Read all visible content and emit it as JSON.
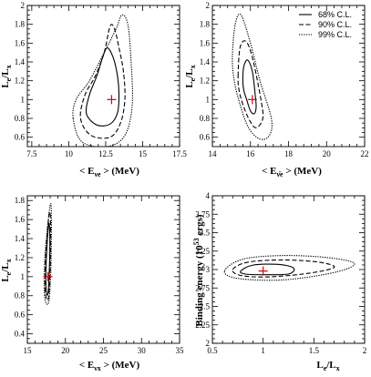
{
  "chart_data": [
    {
      "id": "p1",
      "type": "contour",
      "xlabel": {
        "main": "< E",
        "sub": "νe",
        "tail": " > (MeV)"
      },
      "ylabel": {
        "main": "L",
        "sub1": "e",
        "mid": "/L",
        "sub2": "x"
      },
      "xlim": [
        7.2,
        17.5
      ],
      "ylim": [
        0.5,
        2.0
      ],
      "xticks": [
        7.5,
        10,
        12.5,
        15,
        17.5
      ],
      "xtick_labels": [
        "7.5",
        "10",
        "12.5",
        "15",
        "17.5"
      ],
      "yticks": [
        0.6,
        0.8,
        1.0,
        1.2,
        1.4,
        1.6,
        1.8,
        2.0
      ],
      "ytick_labels": [
        "0.6",
        "0.8",
        "1",
        "1.2",
        "1.4",
        "1.6",
        "1.8",
        "2"
      ],
      "best_fit": [
        12.9,
        1.0
      ],
      "contours": [
        {
          "level": "68% C.L.",
          "style": "solid",
          "points": [
            [
              11.2,
              0.85
            ],
            [
              11.9,
              0.73
            ],
            [
              12.8,
              0.74
            ],
            [
              13.3,
              0.86
            ],
            [
              13.4,
              1.05
            ],
            [
              13.3,
              1.25
            ],
            [
              13.0,
              1.45
            ],
            [
              12.6,
              1.55
            ],
            [
              12.3,
              1.45
            ],
            [
              11.9,
              1.25
            ],
            [
              11.4,
              1.05
            ]
          ]
        },
        {
          "level": "90% C.L.",
          "style": "dashed",
          "points": [
            [
              10.8,
              0.8
            ],
            [
              11.5,
              0.62
            ],
            [
              12.8,
              0.6
            ],
            [
              13.5,
              0.75
            ],
            [
              13.8,
              1.0
            ],
            [
              13.7,
              1.3
            ],
            [
              13.4,
              1.55
            ],
            [
              13.1,
              1.75
            ],
            [
              12.8,
              1.78
            ],
            [
              12.4,
              1.5
            ],
            [
              11.8,
              1.25
            ],
            [
              11.1,
              1.05
            ]
          ]
        },
        {
          "level": "99% C.L.",
          "style": "dotted",
          "points": [
            [
              10.3,
              0.8
            ],
            [
              10.9,
              0.55
            ],
            [
              12.6,
              0.5
            ],
            [
              13.8,
              0.62
            ],
            [
              14.3,
              0.95
            ],
            [
              14.2,
              1.45
            ],
            [
              14.0,
              1.8
            ],
            [
              13.6,
              1.9
            ],
            [
              13.2,
              1.75
            ],
            [
              12.4,
              1.5
            ],
            [
              11.4,
              1.2
            ],
            [
              10.5,
              1.0
            ]
          ]
        }
      ]
    },
    {
      "id": "p2",
      "type": "contour",
      "xlabel": {
        "main": "< E",
        "sub": "ν̄e",
        "tail": " > (MeV)"
      },
      "ylabel": {
        "main": "L",
        "sub1": "e",
        "mid": "/L",
        "sub2": "x"
      },
      "xlim": [
        14,
        22
      ],
      "ylim": [
        0.5,
        2.0
      ],
      "xticks": [
        14,
        16,
        18,
        20,
        22
      ],
      "xtick_labels": [
        "14",
        "16",
        "18",
        "20",
        "22"
      ],
      "yticks": [
        0.6,
        0.8,
        1.0,
        1.2,
        1.4,
        1.6,
        1.8,
        2.0
      ],
      "ytick_labels": [
        "0.6",
        "0.8",
        "1",
        "1.2",
        "1.4",
        "1.6",
        "1.8",
        "2"
      ],
      "best_fit": [
        16.1,
        1.0
      ],
      "legend": {
        "position": "top-right",
        "entries": [
          {
            "label": "68% C.L.",
            "style": "solid"
          },
          {
            "label": "90% C.L.",
            "style": "dashed"
          },
          {
            "label": "99% C.L.",
            "style": "dotted"
          }
        ]
      },
      "contours": [
        {
          "level": "68% C.L.",
          "style": "solid",
          "points": [
            [
              15.6,
              1.2
            ],
            [
              15.65,
              1.35
            ],
            [
              15.85,
              1.42
            ],
            [
              16.1,
              1.3
            ],
            [
              16.25,
              1.05
            ],
            [
              16.3,
              0.92
            ],
            [
              16.2,
              0.85
            ],
            [
              16.0,
              0.88
            ],
            [
              15.8,
              1.0
            ],
            [
              15.65,
              1.1
            ]
          ]
        },
        {
          "level": "90% C.L.",
          "style": "dashed",
          "points": [
            [
              15.35,
              1.25
            ],
            [
              15.45,
              1.55
            ],
            [
              15.75,
              1.62
            ],
            [
              16.1,
              1.45
            ],
            [
              16.55,
              1.0
            ],
            [
              16.65,
              0.8
            ],
            [
              16.3,
              0.7
            ],
            [
              15.95,
              0.78
            ],
            [
              15.6,
              0.95
            ],
            [
              15.4,
              1.1
            ]
          ]
        },
        {
          "level": "99% C.L.",
          "style": "dotted",
          "points": [
            [
              15.05,
              1.45
            ],
            [
              15.2,
              1.8
            ],
            [
              15.5,
              1.9
            ],
            [
              16.0,
              1.6
            ],
            [
              16.5,
              1.2
            ],
            [
              17.1,
              0.8
            ],
            [
              17.0,
              0.62
            ],
            [
              16.5,
              0.58
            ],
            [
              15.9,
              0.7
            ],
            [
              15.45,
              0.95
            ],
            [
              15.15,
              1.2
            ]
          ]
        }
      ]
    },
    {
      "id": "p3",
      "type": "contour",
      "xlabel": {
        "main": "< E",
        "sub": "νx",
        "tail": " > (MeV)"
      },
      "ylabel": {
        "main": "L",
        "sub1": "e",
        "mid": "/L",
        "sub2": "x"
      },
      "xlim": [
        15,
        35
      ],
      "ylim": [
        0.3,
        1.85
      ],
      "xticks": [
        15,
        20,
        25,
        30,
        35
      ],
      "xtick_labels": [
        "15",
        "20",
        "25",
        "30",
        "35"
      ],
      "yticks": [
        0.4,
        0.6,
        0.8,
        1.0,
        1.2,
        1.4,
        1.6,
        1.8
      ],
      "ytick_labels": [
        "0.4",
        "0.6",
        "0.8",
        "1",
        "1.2",
        "1.4",
        "1.6",
        "1.8"
      ],
      "best_fit": [
        17.7,
        1.0
      ],
      "contours": [
        {
          "level": "68% C.L.",
          "style": "solid",
          "points": [
            [
              17.45,
              0.88
            ],
            [
              17.5,
              1.2
            ],
            [
              17.8,
              1.55
            ],
            [
              17.95,
              1.45
            ],
            [
              17.9,
              1.1
            ],
            [
              17.7,
              0.82
            ]
          ]
        },
        {
          "level": "90% C.L.",
          "style": "dashed",
          "points": [
            [
              17.35,
              0.84
            ],
            [
              17.4,
              1.2
            ],
            [
              17.85,
              1.65
            ],
            [
              18.05,
              1.58
            ],
            [
              18.0,
              1.1
            ],
            [
              17.75,
              0.77
            ]
          ]
        },
        {
          "level": "99% C.L.",
          "style": "dotted",
          "points": [
            [
              17.25,
              0.8
            ],
            [
              17.3,
              1.2
            ],
            [
              17.9,
              1.7
            ],
            [
              18.15,
              1.7
            ],
            [
              18.1,
              1.1
            ],
            [
              17.8,
              0.73
            ]
          ]
        }
      ]
    },
    {
      "id": "p4",
      "type": "contour",
      "xlabel": {
        "main": "L",
        "sub1": "e",
        "mid": "/L",
        "sub2": "x"
      },
      "ylabel": {
        "pre": "Binding energy (10",
        "sup": "53",
        "post": " ergs)"
      },
      "xlim": [
        0.5,
        2.0
      ],
      "ylim": [
        2.0,
        4.0
      ],
      "xticks": [
        0.5,
        1.0,
        1.5,
        2.0
      ],
      "xtick_labels": [
        "0.5",
        "1",
        "1.5",
        "2"
      ],
      "yticks": [
        2.0,
        2.25,
        2.5,
        2.75,
        3.0,
        3.25,
        3.5,
        3.75,
        4.0
      ],
      "ytick_labels": [
        "2",
        "2.25",
        "2.5",
        "2.75",
        "3",
        "3.25",
        "3.5",
        "3.75",
        "4"
      ],
      "best_fit": [
        1.0,
        2.98
      ],
      "contours": [
        {
          "level": "68% C.L.",
          "style": "solid",
          "points": [
            [
              0.78,
              2.98
            ],
            [
              0.9,
              3.06
            ],
            [
              1.15,
              3.07
            ],
            [
              1.3,
              3.02
            ],
            [
              1.25,
              2.94
            ],
            [
              1.0,
              2.93
            ],
            [
              0.82,
              2.94
            ]
          ]
        },
        {
          "level": "90% C.L.",
          "style": "dashed",
          "points": [
            [
              0.7,
              3.0
            ],
            [
              0.85,
              3.1
            ],
            [
              1.2,
              3.13
            ],
            [
              1.55,
              3.1
            ],
            [
              1.7,
              3.03
            ],
            [
              1.45,
              2.95
            ],
            [
              1.05,
              2.9
            ],
            [
              0.78,
              2.92
            ]
          ]
        },
        {
          "level": "99% C.L.",
          "style": "dotted",
          "points": [
            [
              0.62,
              2.98
            ],
            [
              0.8,
              3.14
            ],
            [
              1.2,
              3.19
            ],
            [
              1.65,
              3.16
            ],
            [
              1.9,
              3.08
            ],
            [
              1.7,
              2.96
            ],
            [
              1.2,
              2.86
            ],
            [
              0.75,
              2.88
            ]
          ]
        }
      ]
    }
  ]
}
